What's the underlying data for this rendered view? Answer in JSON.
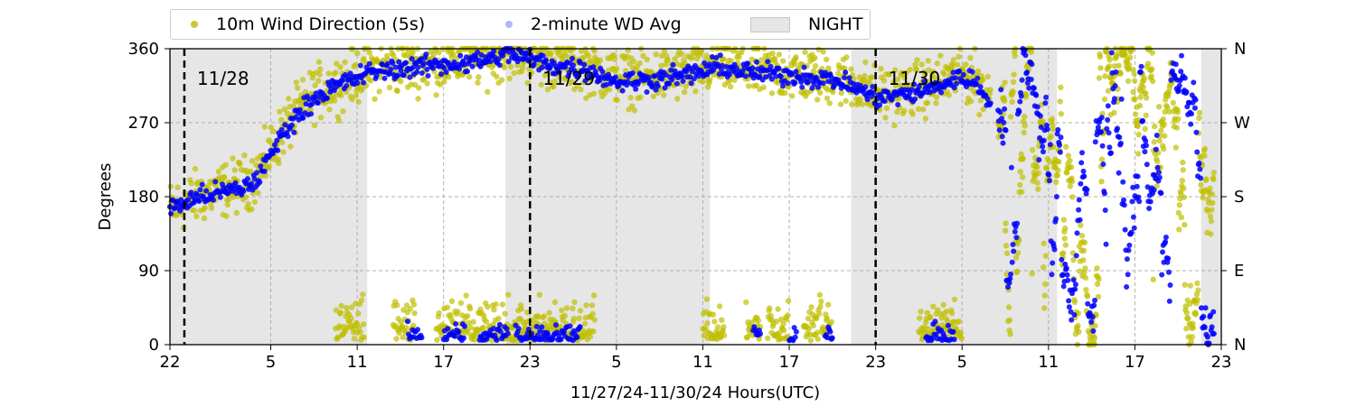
{
  "chart_data": {
    "type": "scatter",
    "xlabel": "11/27/24-11/30/24  Hours(UTC)",
    "ylabel": "Degrees",
    "ylim": [
      0,
      360
    ],
    "y_ticks": [
      0,
      90,
      180,
      270,
      360
    ],
    "right_ticks": [
      {
        "value": 0,
        "label": "N"
      },
      {
        "value": 90,
        "label": "E"
      },
      {
        "value": 180,
        "label": "S"
      },
      {
        "value": 270,
        "label": "W"
      },
      {
        "value": 360,
        "label": "N"
      }
    ],
    "x_range_hours": [
      0,
      73
    ],
    "x_ticks": [
      {
        "hour": 0,
        "label": "22"
      },
      {
        "hour": 7,
        "label": "5"
      },
      {
        "hour": 13,
        "label": "11"
      },
      {
        "hour": 19,
        "label": "17"
      },
      {
        "hour": 25,
        "label": "23"
      },
      {
        "hour": 31,
        "label": "5"
      },
      {
        "hour": 37,
        "label": "11"
      },
      {
        "hour": 43,
        "label": "17"
      },
      {
        "hour": 49,
        "label": "23"
      },
      {
        "hour": 55,
        "label": "5"
      },
      {
        "hour": 61,
        "label": "11"
      },
      {
        "hour": 67,
        "label": "17"
      },
      {
        "hour": 73,
        "label": "23"
      }
    ],
    "grid": true,
    "legend_position": "top",
    "day_markers": [
      {
        "hour": 1,
        "label": "11/28"
      },
      {
        "hour": 25,
        "label": "11/29"
      },
      {
        "hour": 49,
        "label": "11/30"
      }
    ],
    "night_spans": [
      [
        0,
        13.7
      ],
      [
        23.3,
        37.5
      ],
      [
        47.3,
        61.6
      ],
      [
        71.6,
        73
      ]
    ],
    "series": [
      {
        "name": "10m Wind Direction (5s)",
        "color": "#bfbf00",
        "trend": [
          [
            0,
            165
          ],
          [
            2,
            180
          ],
          [
            5,
            195
          ],
          [
            6,
            205
          ],
          [
            8,
            265
          ],
          [
            10,
            305
          ],
          [
            12,
            320
          ],
          [
            14,
            335
          ],
          [
            17,
            340
          ],
          [
            20,
            345
          ],
          [
            22.5,
            350
          ],
          [
            23.5,
            358
          ],
          [
            26,
            345
          ],
          [
            29,
            338
          ],
          [
            31,
            325
          ],
          [
            33,
            325
          ],
          [
            36,
            330
          ],
          [
            38,
            340
          ],
          [
            40,
            335
          ],
          [
            43,
            330
          ],
          [
            46,
            325
          ],
          [
            47.5,
            318
          ],
          [
            49,
            305
          ],
          [
            51,
            308
          ],
          [
            53,
            315
          ],
          [
            55,
            330
          ],
          [
            56,
            322
          ],
          [
            57,
            298
          ]
        ],
        "low_band_hours": [
          [
            11.5,
            13.5
          ],
          [
            15.5,
            17
          ],
          [
            18.5,
            24
          ],
          [
            24,
            29.5
          ],
          [
            37,
            38.5
          ],
          [
            40,
            41
          ],
          [
            41.5,
            43
          ],
          [
            44,
            46
          ],
          [
            52,
            55
          ]
        ],
        "late_segment_hours": [
          57.5,
          72.5
        ]
      },
      {
        "name": "2-minute WD Avg",
        "color": "#0000ff",
        "trend": [
          [
            0,
            165
          ],
          [
            2,
            180
          ],
          [
            5,
            190
          ],
          [
            6,
            200
          ],
          [
            8,
            262
          ],
          [
            10,
            300
          ],
          [
            12,
            318
          ],
          [
            14,
            332
          ],
          [
            17,
            338
          ],
          [
            20,
            342
          ],
          [
            22.5,
            348
          ],
          [
            23.5,
            355
          ],
          [
            26,
            342
          ],
          [
            29,
            334
          ],
          [
            31,
            320
          ],
          [
            33,
            322
          ],
          [
            36,
            328
          ],
          [
            38,
            338
          ],
          [
            40,
            332
          ],
          [
            43,
            328
          ],
          [
            46,
            322
          ],
          [
            47.5,
            314
          ],
          [
            49,
            300
          ],
          [
            51,
            304
          ],
          [
            53,
            312
          ],
          [
            55,
            326
          ],
          [
            56,
            318
          ],
          [
            57,
            294
          ]
        ],
        "low_band_hours": [
          [
            16.5,
            17.5
          ],
          [
            19,
            20.5
          ],
          [
            21.5,
            23.5
          ],
          [
            24,
            28.5
          ],
          [
            40.5,
            41
          ],
          [
            43,
            43.5
          ],
          [
            45.5,
            46
          ],
          [
            52.5,
            54.5
          ]
        ],
        "late_segment_hours": [
          57.5,
          72.5
        ]
      }
    ],
    "night_legend_label": "NIGHT",
    "night_color": "#e6e6e6"
  }
}
